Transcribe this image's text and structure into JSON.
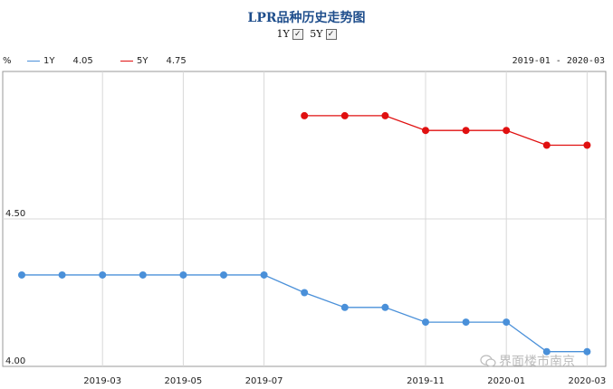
{
  "title": "LPR品种历史走势图",
  "toggles": [
    {
      "label": "1Y",
      "checked": true
    },
    {
      "label": "5Y",
      "checked": true
    }
  ],
  "checkmark": "✓",
  "unit": "%",
  "date_range": "2019-01 - 2020-03",
  "watermark": "界面楼市南京",
  "colors": {
    "series_1y": "#4a90d9",
    "series_5y": "#e01010",
    "grid": "#d8d8d8",
    "axis": "#999999"
  },
  "chart_data": {
    "type": "line",
    "title": "LPR品种历史走势图",
    "xlabel": "",
    "ylabel": "%",
    "x": [
      "2019-01",
      "2019-02",
      "2019-03",
      "2019-04",
      "2019-05",
      "2019-06",
      "2019-07",
      "2019-08",
      "2019-09",
      "2019-10",
      "2019-11",
      "2019-12",
      "2020-01",
      "2020-02",
      "2020-03"
    ],
    "x_tick_labels": [
      "2019-03",
      "2019-05",
      "2019-07",
      "2019-11",
      "2020-01",
      "2020-03"
    ],
    "y_tick_labels": [
      "4.00",
      "4.50"
    ],
    "ylim": [
      4.0,
      5.0
    ],
    "grid": true,
    "legend": "top-left",
    "series": [
      {
        "name": "1Y",
        "latest": "4.05",
        "values": [
          4.31,
          4.31,
          4.31,
          4.31,
          4.31,
          4.31,
          4.31,
          4.25,
          4.2,
          4.2,
          4.15,
          4.15,
          4.15,
          4.05,
          4.05
        ]
      },
      {
        "name": "5Y",
        "latest": "4.75",
        "values": [
          null,
          null,
          null,
          null,
          null,
          null,
          null,
          4.85,
          4.85,
          4.85,
          4.8,
          4.8,
          4.8,
          4.75,
          4.75
        ]
      }
    ]
  }
}
